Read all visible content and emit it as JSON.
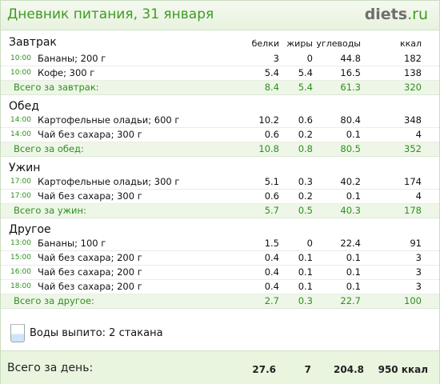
{
  "header": {
    "title": "Дневник питания, 31 января",
    "logo_main": "diets",
    "logo_domain": ".ru"
  },
  "columns": {
    "protein": "белки",
    "fat": "жиры",
    "carbs": "углеводы",
    "kcal": "ккал"
  },
  "sections": [
    {
      "title": "Завтрак",
      "items": [
        {
          "time": "10:00",
          "name": "Бананы; 200 г",
          "protein": "3",
          "fat": "0",
          "carbs": "44.8",
          "kcal": "182"
        },
        {
          "time": "10:00",
          "name": "Кофе; 300 г",
          "protein": "5.4",
          "fat": "5.4",
          "carbs": "16.5",
          "kcal": "138"
        }
      ],
      "total": {
        "label": "Всего за завтрак:",
        "protein": "8.4",
        "fat": "5.4",
        "carbs": "61.3",
        "kcal": "320"
      }
    },
    {
      "title": "Обед",
      "items": [
        {
          "time": "14:00",
          "name": "Картофельные оладьи; 600 г",
          "protein": "10.2",
          "fat": "0.6",
          "carbs": "80.4",
          "kcal": "348"
        },
        {
          "time": "14:00",
          "name": "Чай без сахара; 300 г",
          "protein": "0.6",
          "fat": "0.2",
          "carbs": "0.1",
          "kcal": "4"
        }
      ],
      "total": {
        "label": "Всего за обед:",
        "protein": "10.8",
        "fat": "0.8",
        "carbs": "80.5",
        "kcal": "352"
      }
    },
    {
      "title": "Ужин",
      "items": [
        {
          "time": "17:00",
          "name": "Картофельные оладьи; 300 г",
          "protein": "5.1",
          "fat": "0.3",
          "carbs": "40.2",
          "kcal": "174"
        },
        {
          "time": "17:00",
          "name": "Чай без сахара; 300 г",
          "protein": "0.6",
          "fat": "0.2",
          "carbs": "0.1",
          "kcal": "4"
        }
      ],
      "total": {
        "label": "Всего за ужин:",
        "protein": "5.7",
        "fat": "0.5",
        "carbs": "40.3",
        "kcal": "178"
      }
    },
    {
      "title": "Другое",
      "items": [
        {
          "time": "13:00",
          "name": "Бананы; 100 г",
          "protein": "1.5",
          "fat": "0",
          "carbs": "22.4",
          "kcal": "91"
        },
        {
          "time": "15:00",
          "name": "Чай без сахара; 200 г",
          "protein": "0.4",
          "fat": "0.1",
          "carbs": "0.1",
          "kcal": "3"
        },
        {
          "time": "16:00",
          "name": "Чай без сахара; 200 г",
          "protein": "0.4",
          "fat": "0.1",
          "carbs": "0.1",
          "kcal": "3"
        },
        {
          "time": "18:00",
          "name": "Чай без сахара; 200 г",
          "protein": "0.4",
          "fat": "0.1",
          "carbs": "0.1",
          "kcal": "3"
        }
      ],
      "total": {
        "label": "Всего за другое:",
        "protein": "2.7",
        "fat": "0.3",
        "carbs": "22.7",
        "kcal": "100"
      }
    }
  ],
  "water": {
    "icon": "water-glass-icon",
    "text": "Воды выпито: 2 стакана"
  },
  "day_total": {
    "label": "Всего за день:",
    "protein": "27.6",
    "fat": "7",
    "carbs": "204.8",
    "kcal": "950 ккал"
  },
  "colors": {
    "accent": "#3f9b23",
    "header_bg": "#eef6e8",
    "total_bg": "#eef6e8"
  }
}
